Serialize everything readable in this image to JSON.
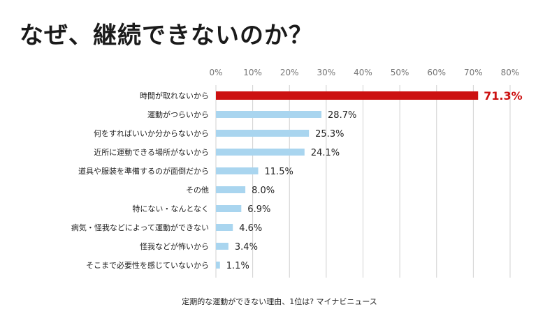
{
  "page": {
    "title": "なぜ、継続できないのか？",
    "source": "定期的な運動ができない理由、1位は? マイナビニュース"
  },
  "colors": {
    "highlight_bar": "#cc1111",
    "highlight_label": "#cc1111",
    "bar": "#a9d5ef",
    "grid": "#d0d0d0",
    "axis_text": "#777777",
    "label_text": "#222222"
  },
  "chart_data": {
    "type": "bar",
    "orientation": "horizontal",
    "title": "",
    "xlabel": "",
    "ylabel": "",
    "xlim": [
      0,
      80
    ],
    "tick_values": [
      0,
      10,
      20,
      30,
      40,
      50,
      60,
      70,
      80
    ],
    "tick_labels": [
      "0%",
      "10%",
      "20%",
      "30%",
      "40%",
      "50%",
      "60%",
      "70%",
      "80%"
    ],
    "tick_position": "top",
    "grid": true,
    "legend": "none",
    "highlight_index": 0,
    "categories": [
      "時間が取れないから",
      "運動がつらいから",
      "何をすればいいか分からないから",
      "近所に運動できる場所がないから",
      "道具や服装を準備するのが面倒だから",
      "その他",
      "特にない・なんとなく",
      "病気・怪我などによって運動ができない",
      "怪我などが怖いから",
      "そこまで必要性を感じていないから"
    ],
    "values": [
      71.3,
      28.7,
      25.3,
      24.1,
      11.5,
      8.0,
      6.9,
      4.6,
      3.4,
      1.1
    ],
    "value_labels": [
      "71.3%",
      "28.7%",
      "25.3%",
      "24.1%",
      "11.5%",
      "8.0%",
      "6.9%",
      "4.6%",
      "3.4%",
      "1.1%"
    ]
  }
}
